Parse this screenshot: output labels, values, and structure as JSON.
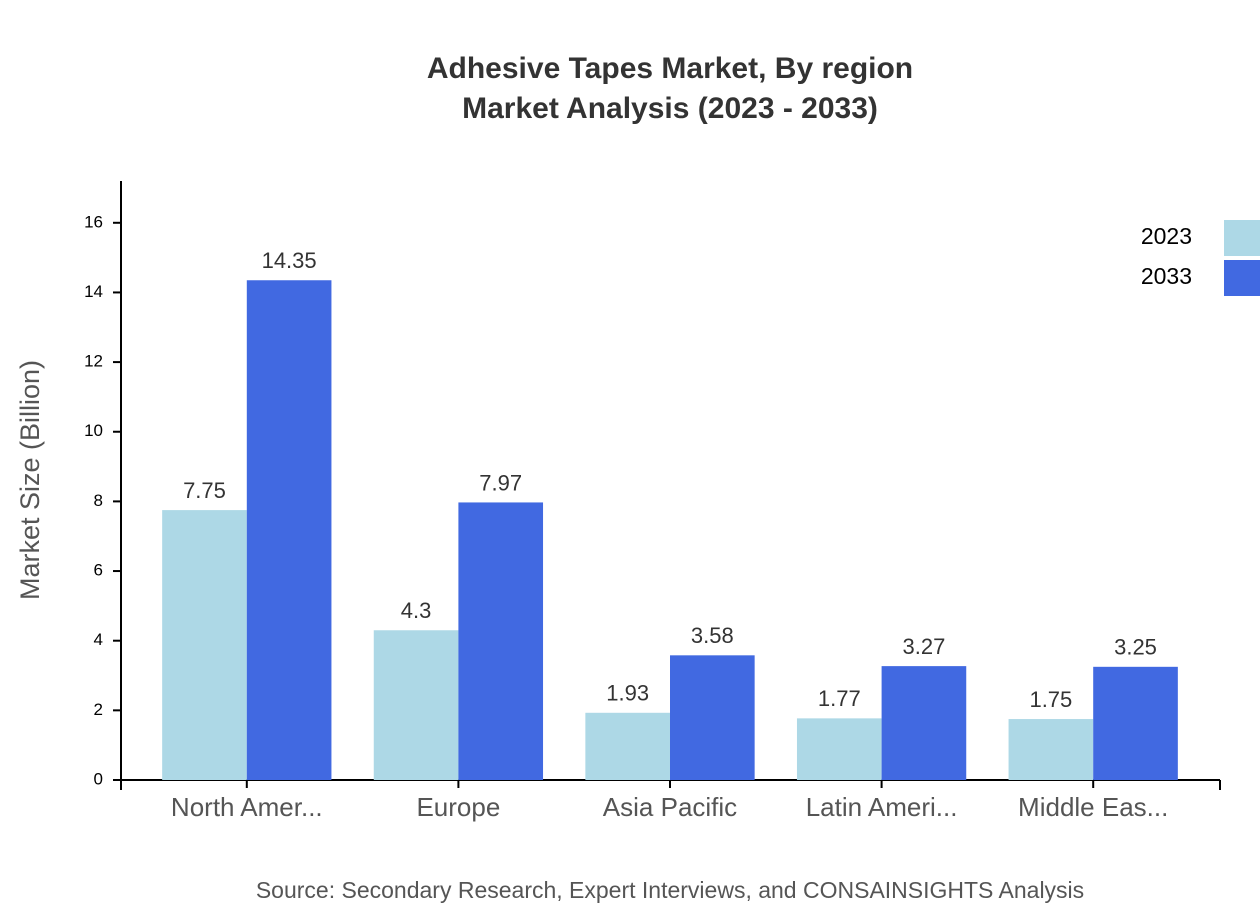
{
  "chart_data": {
    "type": "bar",
    "title": "Adhesive Tapes Market, By region",
    "subtitle": "Market Analysis (2023 - 2033)",
    "y_label": "Market Size (Billion)",
    "source": "Source: Secondary Research, Expert Interviews, and CONSAINSIGHTS Analysis",
    "categories": [
      "North Amer...",
      "Europe",
      "Asia Pacific",
      "Latin Ameri...",
      "Middle Eas..."
    ],
    "series": [
      {
        "name": "2023",
        "color": "#add8e6",
        "values": [
          7.75,
          4.3,
          1.93,
          1.77,
          1.75
        ]
      },
      {
        "name": "2033",
        "color": "#4169e1",
        "values": [
          14.35,
          7.97,
          3.58,
          3.27,
          3.25
        ]
      }
    ],
    "ylim": [
      0,
      17.2
    ],
    "yticks": [
      0,
      2,
      4,
      6,
      8,
      10,
      12,
      14,
      16
    ],
    "legend": "top-right"
  }
}
